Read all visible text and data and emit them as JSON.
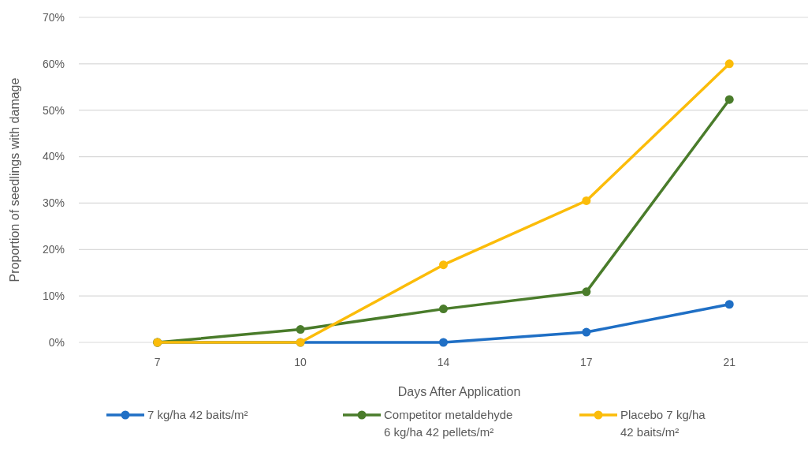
{
  "chart_data": {
    "type": "line",
    "xlabel": "Days After Application",
    "ylabel": "Proportion of seedlings with damage",
    "categories": [
      "7",
      "10",
      "14",
      "17",
      "21"
    ],
    "series": [
      {
        "values": [
          0,
          0,
          0,
          2.2,
          8.2
        ],
        "color": "#1f6fc5",
        "name": "7 kg/ha 42 baits/m²"
      },
      {
        "values": [
          0,
          2.8,
          7.2,
          10.9,
          52.3
        ],
        "color": "#4a7c2b",
        "name": "Competitor metaldehyde\n6 kg/ha 42 pellets/m²"
      },
      {
        "values": [
          0,
          0,
          16.7,
          30.5,
          60
        ],
        "color": "#fbbc09",
        "name": "Placebo 7 kg/ha\n42 baits/m²"
      }
    ],
    "ylim": [
      0,
      70
    ],
    "yticks": [
      {
        "value": 0,
        "label": "0%"
      },
      {
        "value": 10,
        "label": "10%"
      },
      {
        "value": 20,
        "label": "20%"
      },
      {
        "value": 30,
        "label": "30%"
      },
      {
        "value": 40,
        "label": "40%"
      },
      {
        "value": 50,
        "label": "50%"
      },
      {
        "value": 60,
        "label": "60%"
      },
      {
        "value": 70,
        "label": "70%"
      }
    ],
    "grid": "y",
    "legend": "bottom",
    "marker": "circle",
    "line_style": "solid"
  }
}
